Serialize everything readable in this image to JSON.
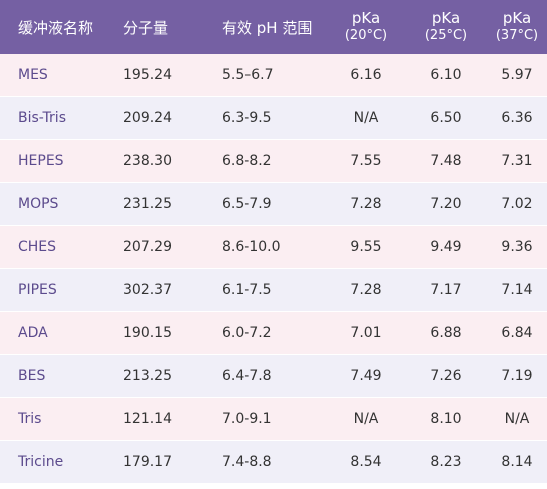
{
  "header": {
    "name": "缓冲液名称",
    "mw": "分子量",
    "range": "有效 pH 范围",
    "pka20_top": "pKa",
    "pka20_sub": "(20°C)",
    "pka25_top": "pKa",
    "pka25_sub": "(25°C)",
    "pka37_top": "pKa",
    "pka37_sub": "(37°C)"
  },
  "rows": [
    {
      "name": "MES",
      "mw": "195.24",
      "range": "5.5–6.7",
      "pka20": "6.16",
      "pka25": "6.10",
      "pka37": "5.97"
    },
    {
      "name": "Bis-Tris",
      "mw": "209.24",
      "range": "6.3-9.5",
      "pka20": "N/A",
      "pka25": "6.50",
      "pka37": "6.36"
    },
    {
      "name": "HEPES",
      "mw": "238.30",
      "range": "6.8-8.2",
      "pka20": "7.55",
      "pka25": "7.48",
      "pka37": "7.31"
    },
    {
      "name": "MOPS",
      "mw": "231.25",
      "range": "6.5-7.9",
      "pka20": "7.28",
      "pka25": "7.20",
      "pka37": "7.02"
    },
    {
      "name": "CHES",
      "mw": "207.29",
      "range": "8.6-10.0",
      "pka20": "9.55",
      "pka25": "9.49",
      "pka37": "9.36"
    },
    {
      "name": "PIPES",
      "mw": "302.37",
      "range": "6.1-7.5",
      "pka20": "7.28",
      "pka25": "7.17",
      "pka37": "7.14"
    },
    {
      "name": "ADA",
      "mw": "190.15",
      "range": "6.0-7.2",
      "pka20": "7.01",
      "pka25": "6.88",
      "pka37": "6.84"
    },
    {
      "name": "BES",
      "mw": "213.25",
      "range": "6.4-7.8",
      "pka20": "7.49",
      "pka25": "7.26",
      "pka37": "7.19"
    },
    {
      "name": "Tris",
      "mw": "121.14",
      "range": "7.0-9.1",
      "pka20": "N/A",
      "pka25": "8.10",
      "pka37": "N/A"
    },
    {
      "name": "Tricine",
      "mw": "179.17",
      "range": "7.4-8.8",
      "pka20": "8.54",
      "pka25": "8.23",
      "pka37": "8.14"
    }
  ],
  "colors": {
    "header_bg": "#7560a3",
    "row_pink": "#fbeef2",
    "row_lavender": "#f0eff8",
    "name_text": "#5c4b8d"
  }
}
